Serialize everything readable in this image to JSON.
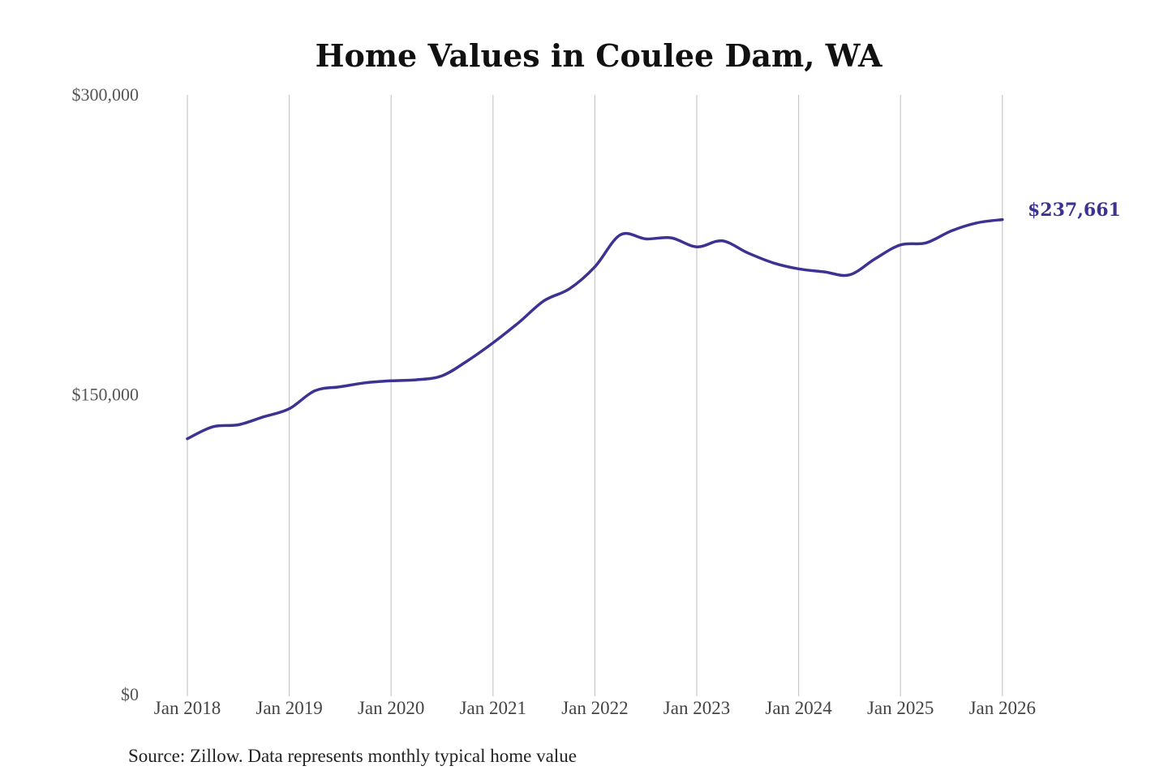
{
  "chart_data": {
    "type": "line",
    "title": "Home Values in Coulee Dam, WA",
    "xlabel": "",
    "ylabel": "",
    "ylim": [
      0,
      300000
    ],
    "yticks": [
      0,
      150000,
      300000
    ],
    "ytick_labels": [
      "$0",
      "$150,000",
      "$300,000"
    ],
    "xticks": [
      "2018-01",
      "2019-01",
      "2020-01",
      "2021-01",
      "2022-01",
      "2023-01",
      "2024-01",
      "2025-01",
      "2026-01"
    ],
    "xtick_labels": [
      "Jan 2018",
      "Jan 2019",
      "Jan 2020",
      "Jan 2021",
      "Jan 2022",
      "Jan 2023",
      "Jan 2024",
      "Jan 2025",
      "Jan 2026"
    ],
    "grid": "vertical",
    "line_color": "#3b3291",
    "series": [
      {
        "x": [
          "2018-01",
          "2018-04",
          "2018-07",
          "2018-10",
          "2019-01",
          "2019-04",
          "2019-07",
          "2019-10",
          "2020-01",
          "2020-04",
          "2020-07",
          "2020-10",
          "2021-01",
          "2021-04",
          "2021-07",
          "2021-10",
          "2022-01",
          "2022-04",
          "2022-07",
          "2022-10",
          "2023-01",
          "2023-04",
          "2023-07",
          "2023-10",
          "2024-01",
          "2024-04",
          "2024-07",
          "2024-10",
          "2025-01",
          "2025-04",
          "2025-07",
          "2025-10",
          "2026-01"
        ],
        "values": [
          128000,
          134000,
          135000,
          139000,
          143000,
          152000,
          154000,
          156000,
          157000,
          157500,
          159500,
          167000,
          176000,
          186000,
          197000,
          203000,
          214000,
          230000,
          228000,
          228500,
          224000,
          227000,
          221000,
          216000,
          213000,
          211500,
          210000,
          218000,
          225000,
          226000,
          232000,
          236000,
          237661
        ]
      }
    ],
    "end_label": "$237,661"
  },
  "footer": {
    "source": "Source: Zillow. Data represents monthly typical home value"
  }
}
